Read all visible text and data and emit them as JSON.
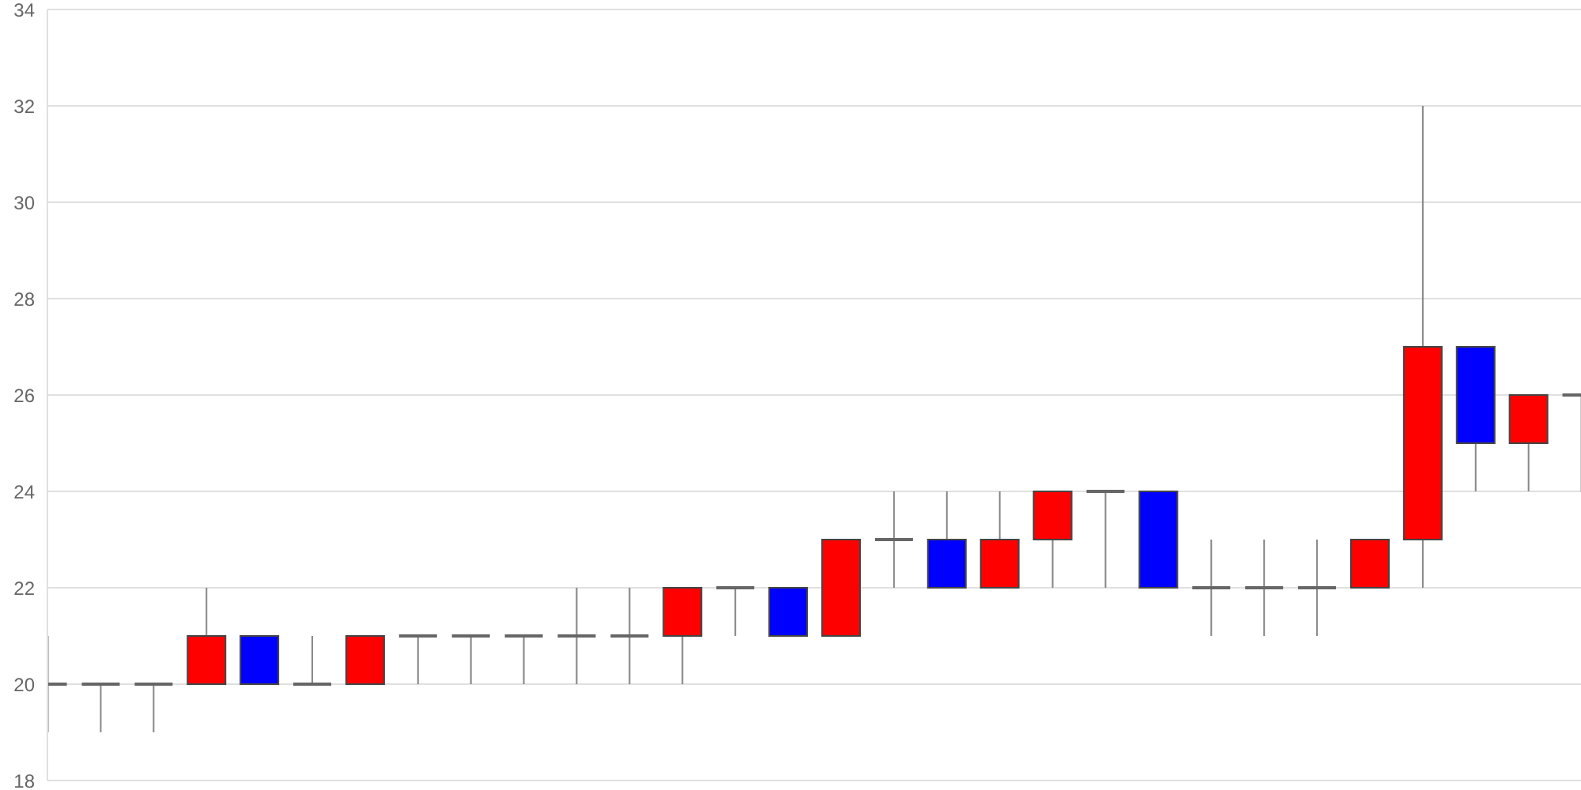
{
  "chart_data": {
    "type": "candlestick",
    "categories": [
      null,
      null,
      null,
      null,
      null,
      null,
      null,
      null,
      null,
      null,
      null,
      null,
      null,
      null,
      null,
      null,
      null,
      null,
      null,
      null,
      null,
      null,
      null,
      null,
      null,
      null,
      null,
      null,
      null,
      null
    ],
    "ohlc": [
      [
        20,
        21,
        19,
        20
      ],
      [
        20,
        20,
        19,
        20
      ],
      [
        20,
        20,
        19,
        20
      ],
      [
        20,
        22,
        20,
        21
      ],
      [
        21,
        21,
        20,
        20
      ],
      [
        20,
        21,
        20,
        20
      ],
      [
        20,
        21,
        20,
        21
      ],
      [
        21,
        21,
        20,
        21
      ],
      [
        21,
        21,
        20,
        21
      ],
      [
        21,
        21,
        20,
        21
      ],
      [
        21,
        22,
        20,
        21
      ],
      [
        21,
        22,
        20,
        21
      ],
      [
        21,
        22,
        20,
        22
      ],
      [
        22,
        22,
        21,
        22
      ],
      [
        22,
        22,
        21,
        21
      ],
      [
        21,
        23,
        21,
        23
      ],
      [
        23,
        24,
        22,
        23
      ],
      [
        23,
        24,
        22,
        22
      ],
      [
        22,
        24,
        22,
        23
      ],
      [
        23,
        24,
        22,
        24
      ],
      [
        24,
        24,
        22,
        24
      ],
      [
        24,
        24,
        22,
        22
      ],
      [
        22,
        23,
        21,
        22
      ],
      [
        22,
        23,
        21,
        22
      ],
      [
        22,
        23,
        21,
        22
      ],
      [
        22,
        23,
        22,
        23
      ],
      [
        23,
        32,
        22,
        27
      ],
      [
        27,
        27,
        24,
        25
      ],
      [
        25,
        26,
        24,
        26
      ],
      [
        26,
        26,
        24,
        26
      ]
    ],
    "colors": [
      "#666666",
      "#666666",
      "#666666",
      "#ff0000",
      "#0000ff",
      "#666666",
      "#ff0000",
      "#666666",
      "#666666",
      "#666666",
      "#666666",
      "#666666",
      "#ff0000",
      "#666666",
      "#0000ff",
      "#ff0000",
      "#666666",
      "#0000ff",
      "#ff0000",
      "#ff0000",
      "#666666",
      "#0000ff",
      "#666666",
      "#666666",
      "#666666",
      "#ff0000",
      "#ff0000",
      "#0000ff",
      "#ff0000",
      "#666666"
    ],
    "ylim": [
      18,
      34
    ],
    "yticks": [
      18,
      20,
      22,
      24,
      26,
      28,
      30,
      32,
      34
    ],
    "grid": "y"
  }
}
